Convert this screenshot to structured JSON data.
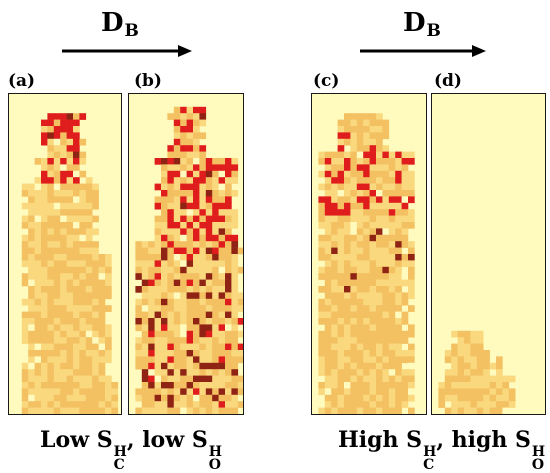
{
  "headers": [
    {
      "symbol": "D",
      "subscript": "B"
    },
    {
      "symbol": "D",
      "subscript": "B"
    }
  ],
  "panels": [
    {
      "label": "(a)"
    },
    {
      "label": "(b)"
    },
    {
      "label": "(c)"
    },
    {
      "label": "(d)"
    }
  ],
  "captions": {
    "left": {
      "word1": "Low S",
      "sup1": "H",
      "sub1": "C",
      "mid": ", low S",
      "sup2": "H",
      "sub2": "O"
    },
    "right": {
      "word1": "High S",
      "sup1": "H",
      "sub1": "C",
      "mid": ", high S",
      "sup2": "H",
      "sub2": "O"
    }
  },
  "colors": {
    "background": "#fffbbf",
    "light_orange": "#f9d87e",
    "orange": "#f3c062",
    "red": "#e01d1d",
    "dark_red": "#8f2414",
    "empty": "#fffbbf"
  }
}
